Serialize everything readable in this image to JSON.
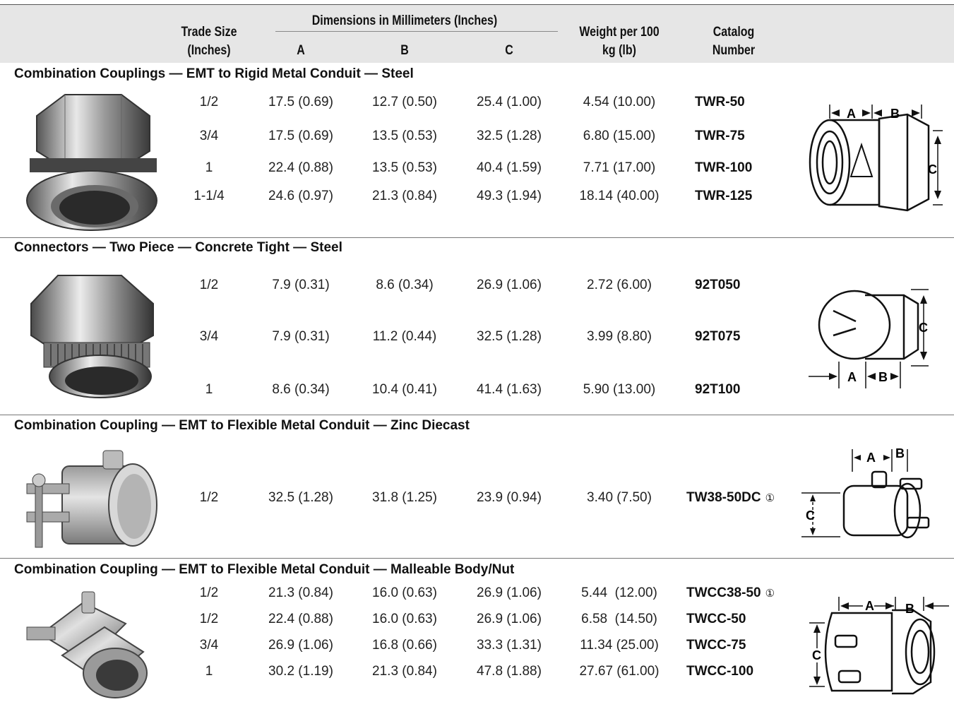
{
  "headers": {
    "trade_size": [
      "Trade Size",
      "(Inches)"
    ],
    "dimensions_group": "Dimensions in Millimeters (Inches)",
    "col_a": "A",
    "col_b": "B",
    "col_c": "C",
    "weight": [
      "Weight per 100",
      "kg (lb)"
    ],
    "catalog": [
      "Catalog",
      "Number"
    ]
  },
  "sections": [
    {
      "title": "Combination Couplings — EMT to Rigid Metal Conduit — Steel",
      "rows": [
        {
          "size": "1/2",
          "a": "17.5 (0.69)",
          "b": "12.7 (0.50)",
          "c": "25.4 (1.00)",
          "weight": "4.54 (10.00)",
          "catalog": "TWR-50",
          "note": ""
        },
        {
          "size": "3/4",
          "a": "17.5 (0.69)",
          "b": "13.5 (0.53)",
          "c": "32.5 (1.28)",
          "weight": "6.80 (15.00)",
          "catalog": "TWR-75",
          "note": ""
        },
        {
          "size": "1",
          "a": "22.4 (0.88)",
          "b": "13.5 (0.53)",
          "c": "40.4 (1.59)",
          "weight": "7.71 (17.00)",
          "catalog": "TWR-100",
          "note": ""
        },
        {
          "size": "1-1/4",
          "a": "24.6 (0.97)",
          "b": "21.3 (0.84)",
          "c": "49.3 (1.94)",
          "weight": "18.14 (40.00)",
          "catalog": "TWR-125",
          "note": ""
        }
      ]
    },
    {
      "title": "Connectors — Two Piece — Concrete Tight — Steel",
      "rows": [
        {
          "size": "1/2",
          "a": "7.9 (0.31)",
          "b": "8.6 (0.34)",
          "c": "26.9 (1.06)",
          "weight": "2.72 (6.00)",
          "catalog": "92T050",
          "note": ""
        },
        {
          "size": "3/4",
          "a": "7.9 (0.31)",
          "b": "11.2 (0.44)",
          "c": "32.5 (1.28)",
          "weight": "3.99 (8.80)",
          "catalog": "92T075",
          "note": ""
        },
        {
          "size": "1",
          "a": "8.6 (0.34)",
          "b": "10.4 (0.41)",
          "c": "41.4 (1.63)",
          "weight": "5.90 (13.00)",
          "catalog": "92T100",
          "note": ""
        }
      ]
    },
    {
      "title": "Combination Coupling — EMT to Flexible Metal Conduit — Zinc Diecast",
      "rows": [
        {
          "size": "1/2",
          "a": "32.5 (1.28)",
          "b": "31.8 (1.25)",
          "c": "23.9 (0.94)",
          "weight": "3.40 (7.50)",
          "catalog": "TW38-50DC",
          "note": "①"
        }
      ]
    },
    {
      "title": "Combination Coupling — EMT to Flexible Metal Conduit — Malleable Body/Nut",
      "rows": [
        {
          "size": "1/2",
          "a": "21.3 (0.84)",
          "b": "16.0 (0.63)",
          "c": "26.9 (1.06)",
          "weight": "5.44  (12.00)",
          "catalog": "TWCC38-50",
          "note": "①"
        },
        {
          "size": "1/2",
          "a": "22.4 (0.88)",
          "b": "16.0 (0.63)",
          "c": "26.9 (1.06)",
          "weight": "6.58  (14.50)",
          "catalog": "TWCC-50",
          "note": ""
        },
        {
          "size": "3/4",
          "a": "26.9 (1.06)",
          "b": "16.8 (0.66)",
          "c": "33.3 (1.31)",
          "weight": "11.34 (25.00)",
          "catalog": "TWCC-75",
          "note": ""
        },
        {
          "size": "1",
          "a": "30.2 (1.19)",
          "b": "21.3 (0.84)",
          "c": "47.8 (1.88)",
          "weight": "27.67 (61.00)",
          "catalog": "TWCC-100",
          "note": ""
        }
      ]
    }
  ],
  "diagram_labels": {
    "a": "A",
    "b": "B",
    "c": "C"
  }
}
